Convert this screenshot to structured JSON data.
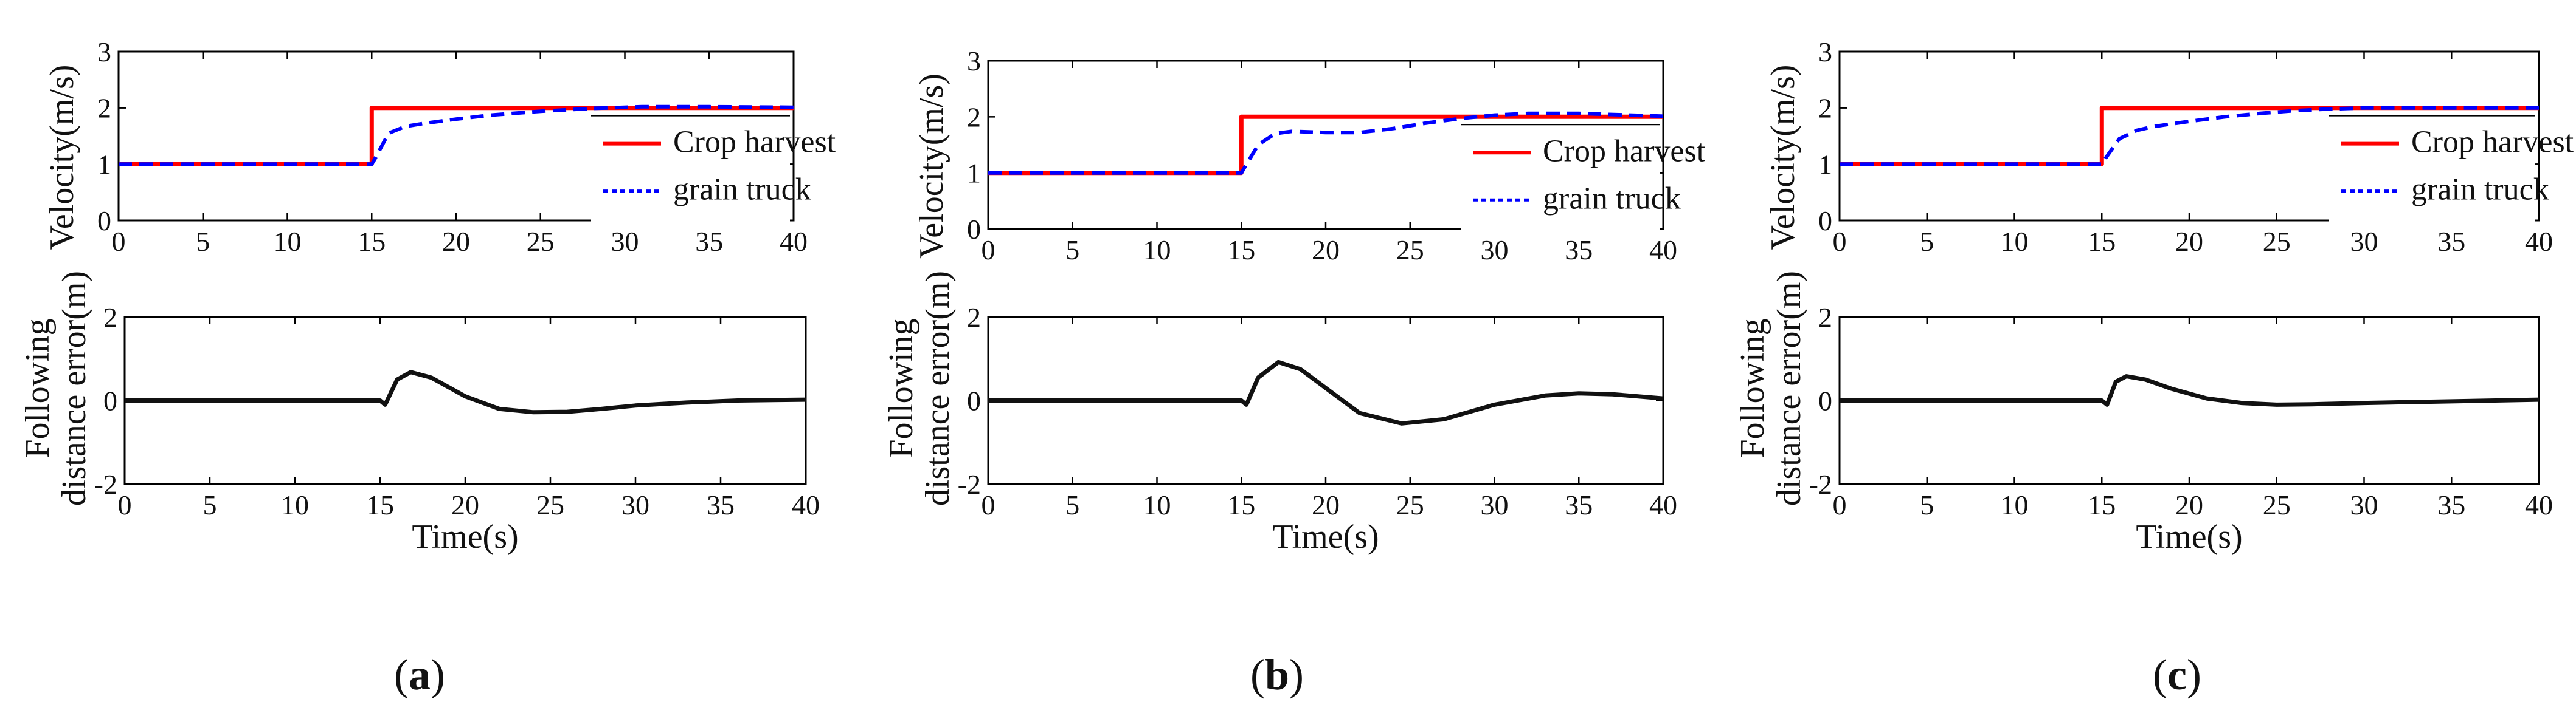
{
  "figure": {
    "panel_labels": [
      {
        "open": "(",
        "letter": "a",
        "close": ")"
      },
      {
        "open": "(",
        "letter": "b",
        "close": ")"
      },
      {
        "open": "(",
        "letter": "c",
        "close": ")"
      }
    ]
  },
  "colors": {
    "harvester": "#ff0000",
    "truck": "#0000ff",
    "error": "#111111",
    "axis": "#000000"
  },
  "chart_data": [
    {
      "type": "line",
      "panel": "a",
      "title": "",
      "xlabel": "",
      "ylabel": "Velocity(m/s)",
      "xlim": [
        0,
        40
      ],
      "ylim": [
        0,
        3
      ],
      "xticks": [
        0,
        5,
        10,
        15,
        20,
        25,
        30,
        35,
        40
      ],
      "yticks": [
        0,
        1,
        2,
        3
      ],
      "legend": {
        "placement": "right",
        "entries": [
          "Crop harvest",
          "grain truck"
        ]
      },
      "series": [
        {
          "name": "Crop harvest",
          "style": "solid",
          "color": "#ff0000",
          "x": [
            0,
            15,
            15,
            40
          ],
          "y": [
            1,
            1,
            2,
            2
          ]
        },
        {
          "name": "grain truck",
          "style": "dashed",
          "color": "#0000ff",
          "x": [
            0,
            15,
            15.2,
            16,
            17,
            18,
            20,
            22,
            25,
            28,
            31,
            35,
            40
          ],
          "y": [
            1,
            1,
            1.1,
            1.55,
            1.67,
            1.72,
            1.8,
            1.87,
            1.94,
            1.99,
            2.02,
            2.02,
            2.01
          ]
        }
      ]
    },
    {
      "type": "line",
      "panel": "a",
      "title": "",
      "xlabel": "Time(s)",
      "ylabel": "Following distance error(m)",
      "ylabel_lines": [
        "Following",
        "distance error(m)"
      ],
      "xlim": [
        0,
        40
      ],
      "ylim": [
        -2,
        2
      ],
      "xticks": [
        0,
        5,
        10,
        15,
        20,
        25,
        30,
        35,
        40
      ],
      "yticks": [
        -2,
        0,
        2
      ],
      "series": [
        {
          "name": "Following distance error",
          "style": "solid",
          "color": "#111111",
          "x": [
            0,
            15,
            15.3,
            16,
            16.8,
            18,
            20,
            22,
            24,
            26,
            28,
            30,
            33,
            36,
            40
          ],
          "y": [
            0,
            0,
            -0.1,
            0.5,
            0.68,
            0.55,
            0.1,
            -0.2,
            -0.28,
            -0.27,
            -0.2,
            -0.12,
            -0.05,
            0.0,
            0.02
          ]
        }
      ]
    },
    {
      "type": "line",
      "panel": "b",
      "title": "",
      "xlabel": "",
      "ylabel": "Velocity(m/s)",
      "xlim": [
        0,
        40
      ],
      "ylim": [
        0,
        3
      ],
      "xticks": [
        0,
        5,
        10,
        15,
        20,
        25,
        30,
        35,
        40
      ],
      "yticks": [
        0,
        1,
        2,
        3
      ],
      "legend": {
        "placement": "right",
        "entries": [
          "Crop harvest",
          "grain truck"
        ]
      },
      "series": [
        {
          "name": "Crop harvest",
          "style": "solid",
          "color": "#ff0000",
          "x": [
            0,
            15,
            15,
            40
          ],
          "y": [
            1,
            1,
            2,
            2
          ]
        },
        {
          "name": "grain truck",
          "style": "dashed",
          "color": "#0000ff",
          "x": [
            0,
            15,
            15.2,
            16,
            17,
            18,
            20,
            22,
            24,
            26,
            28,
            30,
            32,
            35,
            38,
            40
          ],
          "y": [
            1,
            1,
            1.1,
            1.5,
            1.7,
            1.74,
            1.72,
            1.72,
            1.79,
            1.89,
            1.97,
            2.03,
            2.06,
            2.06,
            2.03,
            2.01
          ]
        }
      ]
    },
    {
      "type": "line",
      "panel": "b",
      "title": "",
      "xlabel": "Time(s)",
      "ylabel": "Following distance error(m)",
      "ylabel_lines": [
        "Following",
        "distance error(m)"
      ],
      "xlim": [
        0,
        40
      ],
      "ylim": [
        -2,
        2
      ],
      "xticks": [
        0,
        5,
        10,
        15,
        20,
        25,
        30,
        35,
        40
      ],
      "yticks": [
        -2,
        0,
        2
      ],
      "series": [
        {
          "name": "Following distance error",
          "style": "solid",
          "color": "#111111",
          "x": [
            0,
            15,
            15.3,
            16,
            17.2,
            18.5,
            20,
            22,
            24.5,
            27,
            30,
            33,
            35,
            37,
            40
          ],
          "y": [
            0,
            0,
            -0.1,
            0.55,
            0.92,
            0.75,
            0.3,
            -0.3,
            -0.55,
            -0.45,
            -0.1,
            0.12,
            0.17,
            0.15,
            0.05
          ]
        }
      ]
    },
    {
      "type": "line",
      "panel": "c",
      "title": "",
      "xlabel": "",
      "ylabel": "Velocity(m/s)",
      "xlim": [
        0,
        40
      ],
      "ylim": [
        0,
        3
      ],
      "xticks": [
        0,
        5,
        10,
        15,
        20,
        25,
        30,
        35,
        40
      ],
      "yticks": [
        0,
        1,
        2,
        3
      ],
      "legend": {
        "placement": "right",
        "entries": [
          "Crop harvest",
          "grain truck"
        ]
      },
      "series": [
        {
          "name": "Crop harvest",
          "style": "solid",
          "color": "#ff0000",
          "x": [
            0,
            15,
            15,
            40
          ],
          "y": [
            1,
            1,
            2,
            2
          ]
        },
        {
          "name": "grain truck",
          "style": "dashed",
          "color": "#0000ff",
          "x": [
            0,
            15,
            15.2,
            16,
            17,
            18,
            20,
            22,
            24,
            26,
            28,
            30,
            35,
            40
          ],
          "y": [
            1,
            1,
            1.1,
            1.45,
            1.6,
            1.67,
            1.76,
            1.84,
            1.9,
            1.95,
            1.98,
            2.0,
            2.0,
            2.0
          ]
        }
      ]
    },
    {
      "type": "line",
      "panel": "c",
      "title": "",
      "xlabel": "Time(s)",
      "ylabel": "Following distance error(m)",
      "ylabel_lines": [
        "Following",
        "distance error(m)"
      ],
      "xlim": [
        0,
        40
      ],
      "ylim": [
        -2,
        2
      ],
      "xticks": [
        0,
        5,
        10,
        15,
        20,
        25,
        30,
        35,
        40
      ],
      "yticks": [
        -2,
        0,
        2
      ],
      "series": [
        {
          "name": "Following distance error",
          "style": "solid",
          "color": "#111111",
          "x": [
            0,
            15,
            15.3,
            15.8,
            16.4,
            17.5,
            19,
            21,
            23,
            25,
            27,
            30,
            35,
            40
          ],
          "y": [
            0,
            0,
            -0.1,
            0.45,
            0.58,
            0.5,
            0.28,
            0.05,
            -0.06,
            -0.1,
            -0.09,
            -0.06,
            -0.02,
            0.02
          ]
        }
      ]
    }
  ]
}
